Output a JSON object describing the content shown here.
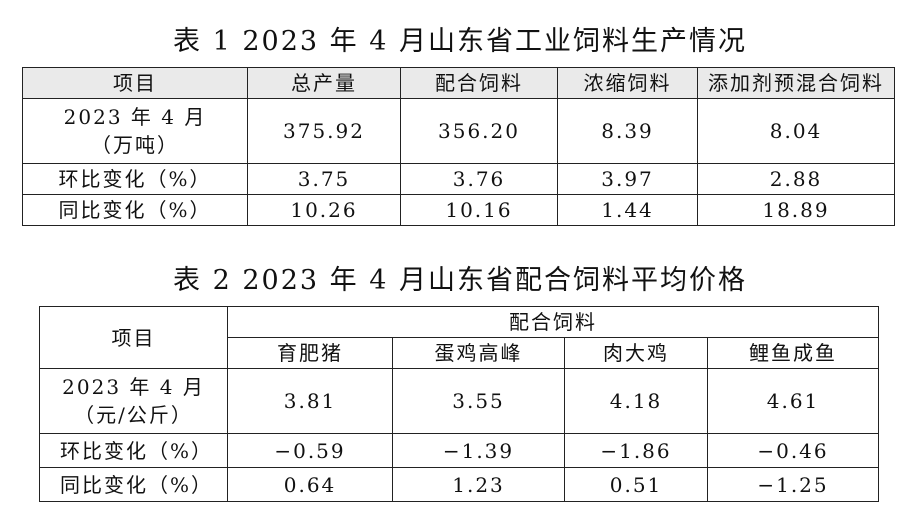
{
  "table1": {
    "caption": "表 1    2023 年 4 月山东省工业饲料生产情况",
    "headers": [
      "项目",
      "总产量",
      "配合饲料",
      "浓缩饲料",
      "添加剂预混合饲料"
    ],
    "rows": [
      {
        "label_line1": "2023 年 4 月",
        "label_line2": "（万吨）",
        "values": [
          "375.92",
          "356.20",
          "8.39",
          "8.04"
        ]
      },
      {
        "label": "环比变化（%）",
        "values": [
          "3.75",
          "3.76",
          "3.97",
          "2.88"
        ]
      },
      {
        "label": "同比变化（%）",
        "values": [
          "10.26",
          "10.16",
          "1.44",
          "18.89"
        ]
      }
    ]
  },
  "table2": {
    "caption": "表 2    2023 年 4 月山东省配合饲料平均价格",
    "corner": "项目",
    "group_header": "配合饲料",
    "sub_headers": [
      "育肥猪",
      "蛋鸡高峰",
      "肉大鸡",
      "鲤鱼成鱼"
    ],
    "rows": [
      {
        "label_line1": "2023 年 4 月",
        "label_line2": "（元/公斤）",
        "values": [
          "3.81",
          "3.55",
          "4.18",
          "4.61"
        ]
      },
      {
        "label": "环比变化（%）",
        "values": [
          "−0.59",
          "−1.39",
          "−1.86",
          "−0.46"
        ]
      },
      {
        "label": "同比变化（%）",
        "values": [
          "0.64",
          "1.23",
          "0.51",
          "−1.25"
        ]
      }
    ]
  }
}
